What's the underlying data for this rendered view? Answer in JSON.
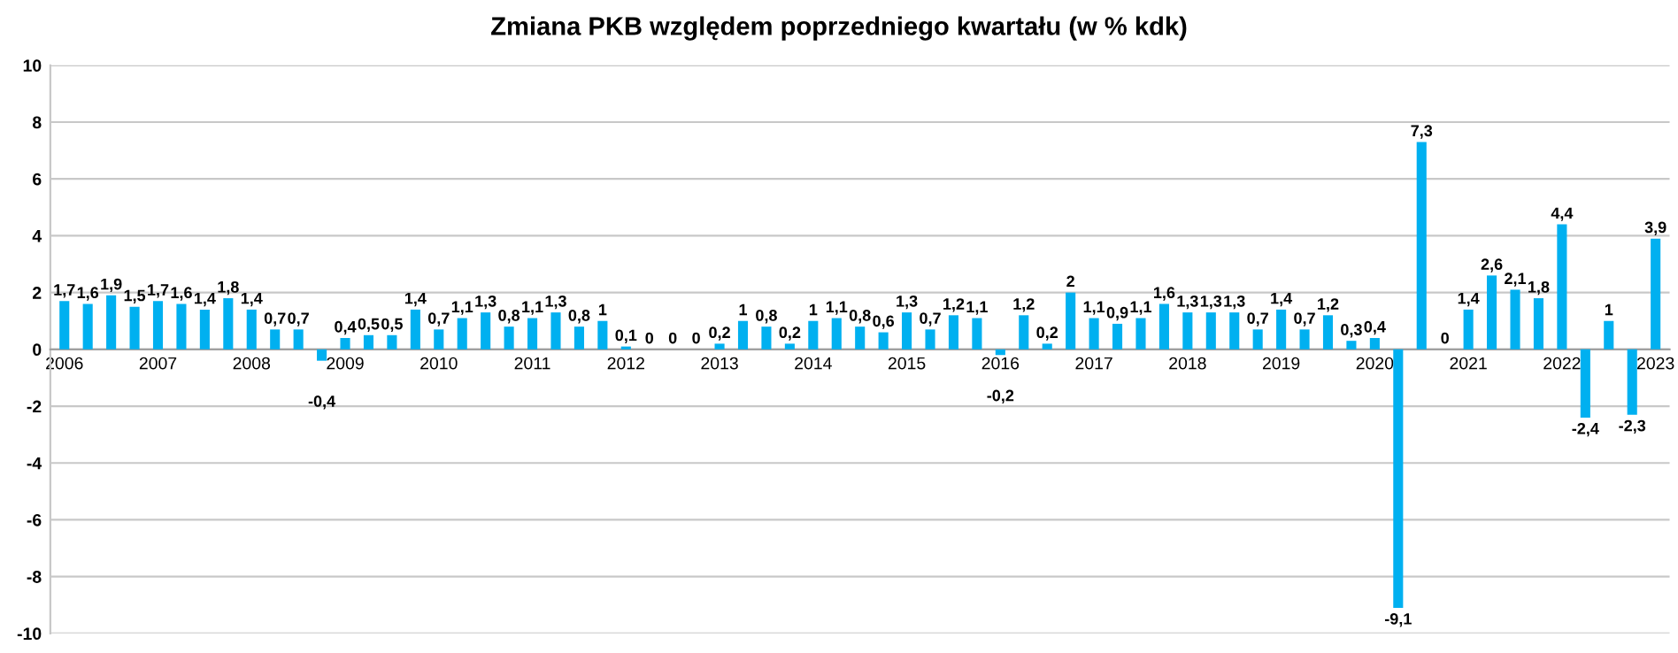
{
  "chart_data": {
    "type": "bar",
    "title": "Zmiana PKB względem poprzedniego kwartału (w % kdk)",
    "categories": [
      "2006",
      null,
      null,
      null,
      "2007",
      null,
      null,
      null,
      "2008",
      null,
      null,
      null,
      "2009",
      null,
      null,
      null,
      "2010",
      null,
      null,
      null,
      "2011",
      null,
      null,
      null,
      "2012",
      null,
      null,
      null,
      "2013",
      null,
      null,
      null,
      "2014",
      null,
      null,
      null,
      "2015",
      null,
      null,
      null,
      "2016",
      null,
      null,
      null,
      "2017",
      null,
      null,
      null,
      "2018",
      null,
      null,
      null,
      "2019",
      null,
      null,
      null,
      "2020",
      null,
      null,
      null,
      "2021",
      null,
      null,
      null,
      "2022",
      null,
      null,
      null,
      "2023"
    ],
    "values": [
      1.7,
      1.6,
      1.9,
      1.5,
      1.7,
      1.6,
      1.4,
      1.8,
      1.4,
      0.7,
      0.7,
      -0.4,
      0.4,
      0.5,
      0.5,
      1.4,
      0.7,
      1.1,
      1.3,
      0.8,
      1.1,
      1.3,
      0.8,
      1,
      0.1,
      0,
      0,
      0,
      0.2,
      1,
      0.8,
      0.2,
      1,
      1.1,
      0.8,
      0.6,
      1.3,
      0.7,
      1.2,
      1.1,
      -0.2,
      1.2,
      0.2,
      2,
      1.1,
      0.9,
      1.1,
      1.6,
      1.3,
      1.3,
      1.3,
      0.7,
      1.4,
      0.7,
      1.2,
      0.3,
      0.4,
      -9.1,
      7.3,
      0,
      1.4,
      2.6,
      2.1,
      1.8,
      4.4,
      -2.4,
      1,
      -2.3,
      3.9
    ],
    "value_labels": [
      "1,7",
      "1,6",
      "1,9",
      "1,5",
      "1,7",
      "1,6",
      "1,4",
      "1,8",
      "1,4",
      "0,7",
      "0,7",
      "-0,4",
      "0,4",
      "0,5",
      "0,5",
      "1,4",
      "0,7",
      "1,1",
      "1,3",
      "0,8",
      "1,1",
      "1,3",
      "0,8",
      "1",
      "0,1",
      "0",
      "0",
      "0",
      "0,2",
      "1",
      "0,8",
      "0,2",
      "1",
      "1,1",
      "0,8",
      "0,6",
      "1,3",
      "0,7",
      "1,2",
      "1,1",
      "-0,2",
      "1,2",
      "0,2",
      "2",
      "1,1",
      "0,9",
      "1,1",
      "1,6",
      "1,3",
      "1,3",
      "1,3",
      "0,7",
      "1,4",
      "0,7",
      "1,2",
      "0,3",
      "0,4",
      "-9,1",
      "7,3",
      "0",
      "1,4",
      "2,6",
      "2,1",
      "1,8",
      "4,4",
      "-2,4",
      "1",
      "-2,3",
      "3,9"
    ],
    "color": "#00b0f0",
    "ylim": [
      -10,
      10
    ],
    "yticks": [
      -10,
      -8,
      -6,
      -4,
      -2,
      0,
      2,
      4,
      6,
      8,
      10
    ],
    "grid": "y"
  }
}
